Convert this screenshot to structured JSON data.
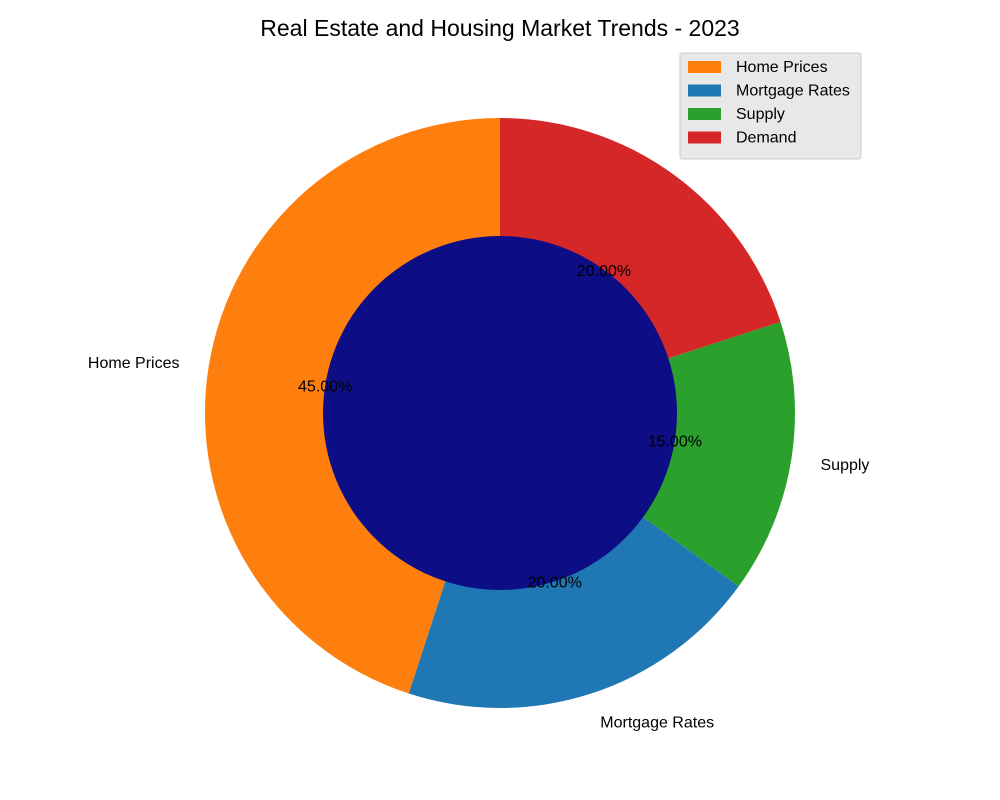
{
  "chart_data": {
    "type": "pie",
    "title": "Real Estate and Housing Market Trends - 2023",
    "variant": "donut",
    "slices": [
      {
        "label": "Home Prices",
        "value": 45,
        "pct_label": "45.00%",
        "color": "#ff7f0e"
      },
      {
        "label": "Mortgage Rates",
        "value": 20,
        "pct_label": "20.00%",
        "color": "#1f77b4"
      },
      {
        "label": "Supply",
        "value": 15,
        "pct_label": "15.00%",
        "color": "#2ca02c"
      },
      {
        "label": "Demand",
        "value": 20,
        "pct_label": "20.00%",
        "color": "#d62728"
      }
    ],
    "center_color": "#0d0d85",
    "legend": {
      "placement": "top-right",
      "entries": [
        "Home Prices",
        "Mortgage Rates",
        "Supply",
        "Demand"
      ]
    }
  }
}
